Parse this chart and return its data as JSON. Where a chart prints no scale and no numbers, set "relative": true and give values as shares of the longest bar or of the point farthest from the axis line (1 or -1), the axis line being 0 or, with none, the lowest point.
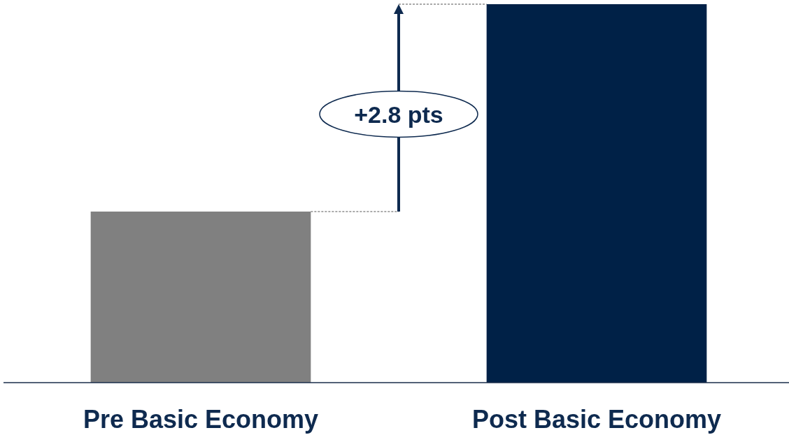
{
  "chart_data": {
    "type": "bar",
    "categories": [
      "Pre Basic Economy",
      "Post Basic Economy"
    ],
    "values": [
      0.452,
      1
    ],
    "colors": [
      "#808080",
      "#002147"
    ],
    "relative": true,
    "annotations": [
      "+2.8 pts"
    ]
  }
}
